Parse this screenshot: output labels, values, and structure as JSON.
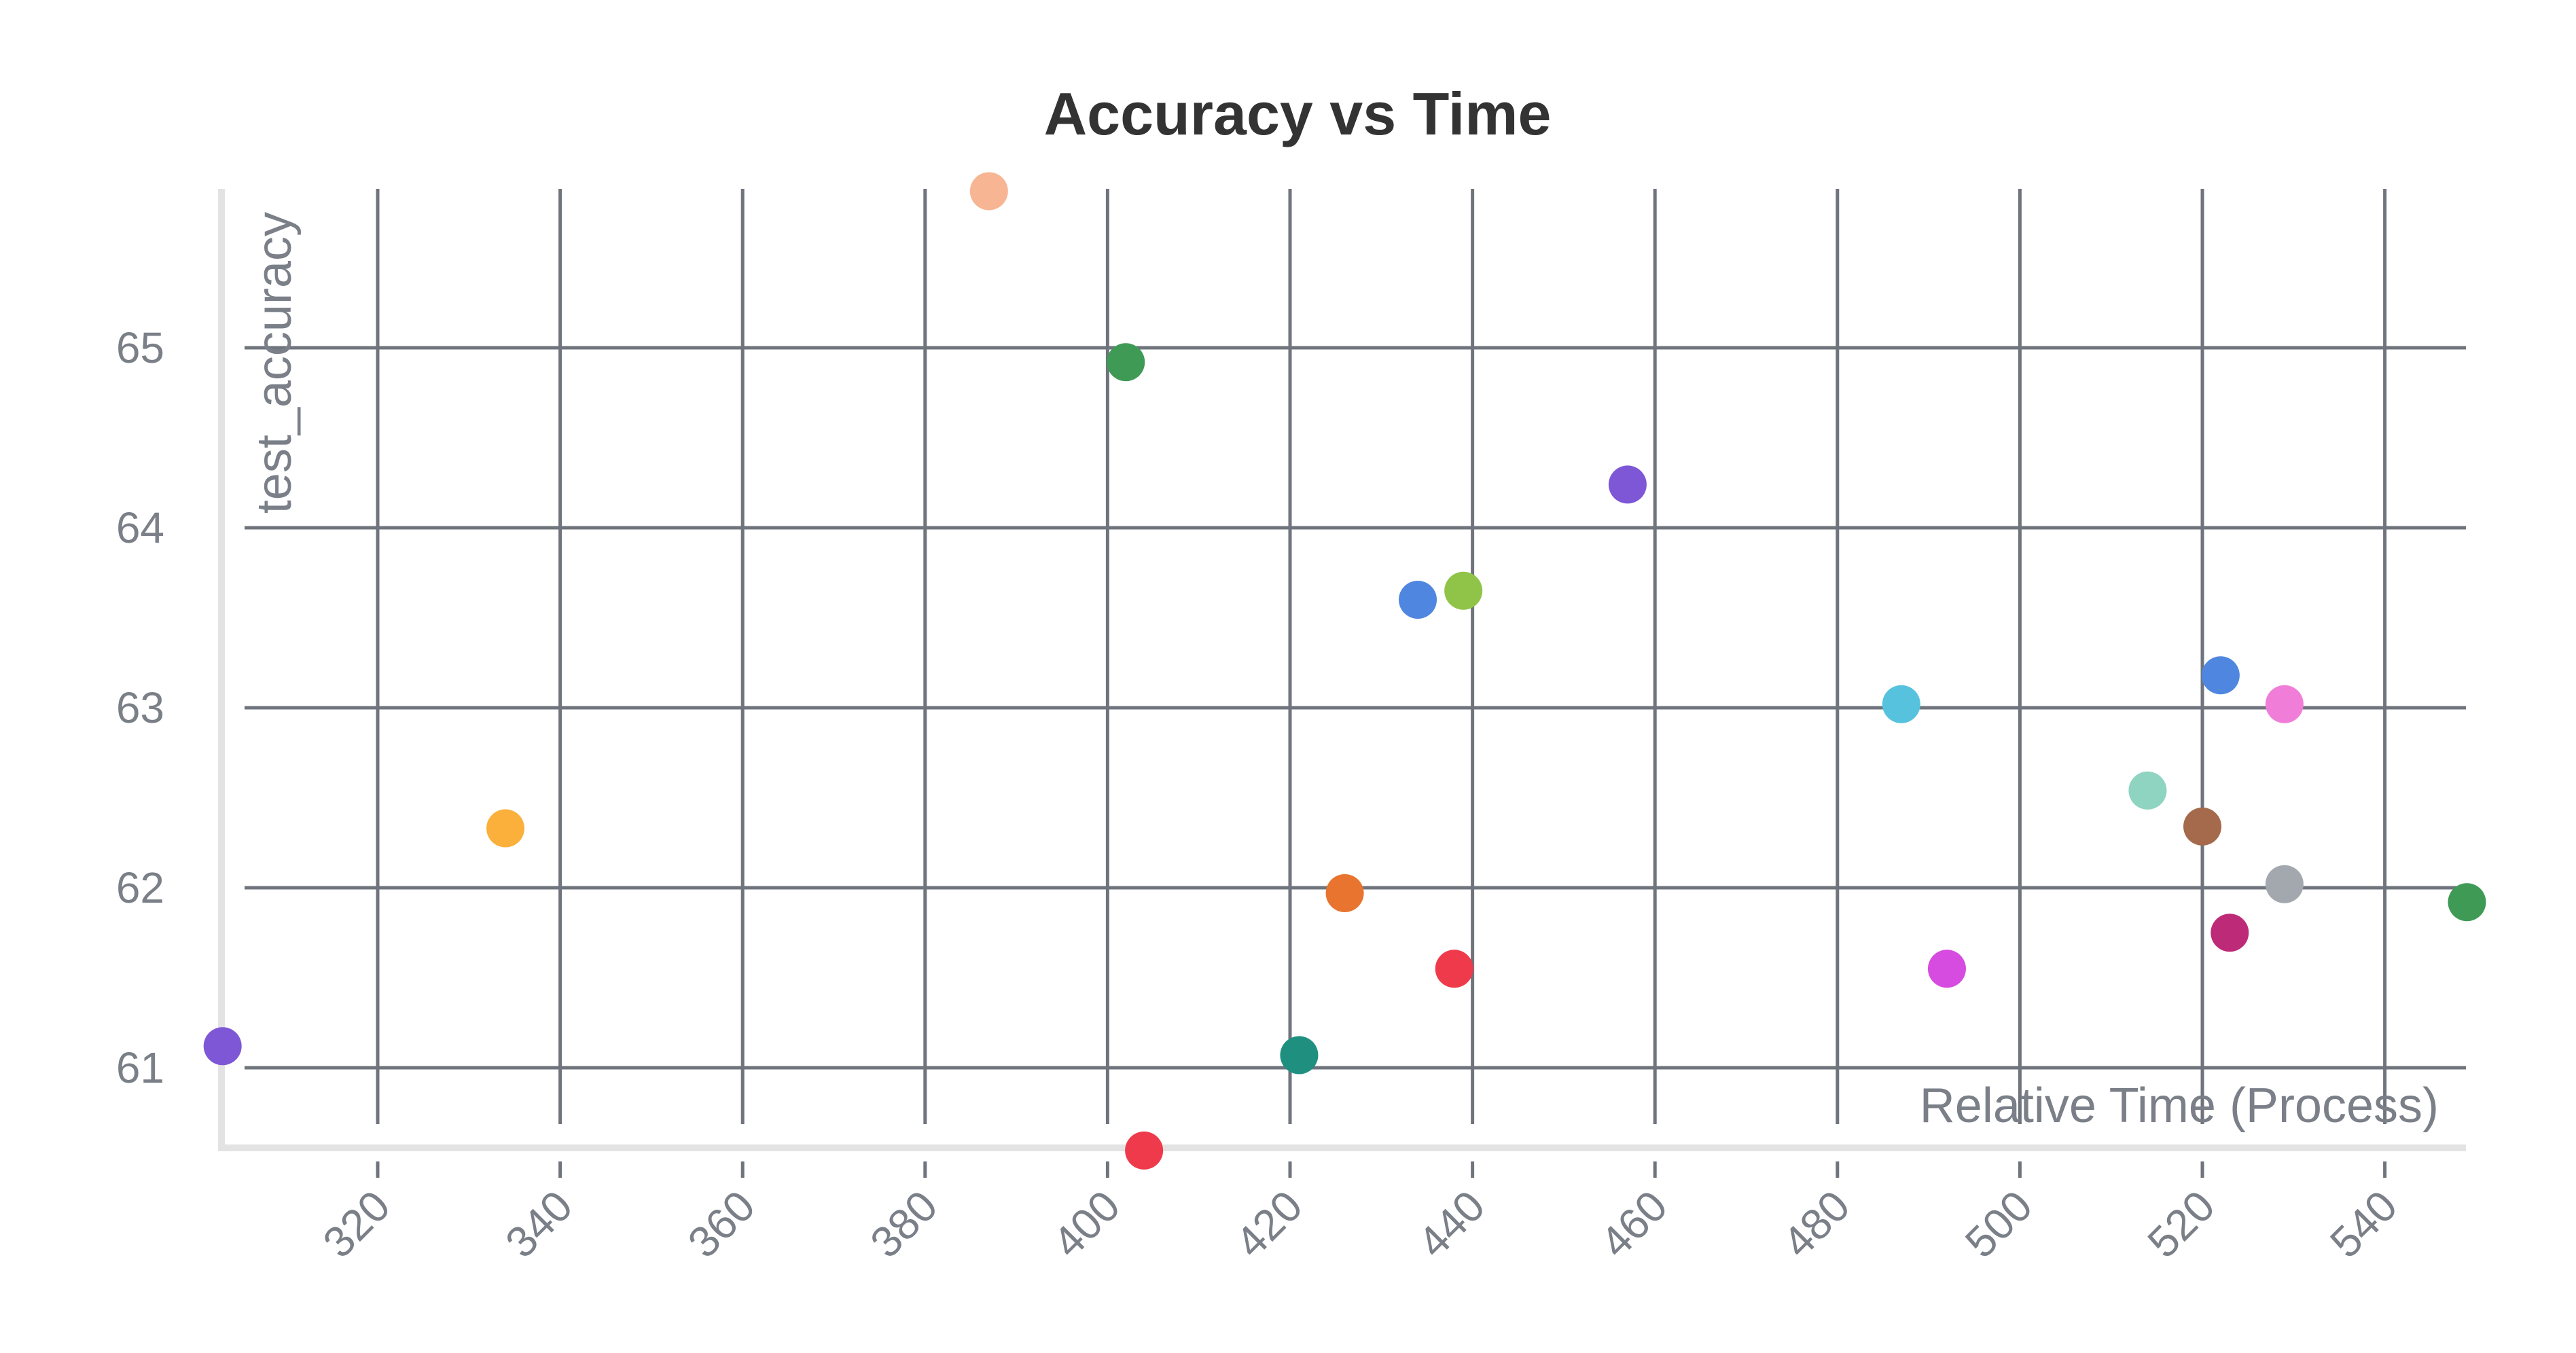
{
  "chart_data": {
    "type": "scatter",
    "title": "Accuracy vs Time",
    "xlabel": "Relative Time (Process)",
    "ylabel": "test_accuracy",
    "xlim": [
      302.8,
      549.5
    ],
    "ylim": [
      60.54,
      65.87
    ],
    "x_ticks": [
      320,
      340,
      360,
      380,
      400,
      420,
      440,
      460,
      480,
      500,
      520,
      540
    ],
    "y_ticks": [
      61,
      62,
      63,
      64,
      65
    ],
    "grid": true,
    "legend": "none",
    "points": [
      {
        "x": 303.0,
        "y": 61.12,
        "color": "#7e57d6"
      },
      {
        "x": 334.0,
        "y": 62.33,
        "color": "#fbb03b"
      },
      {
        "x": 387.0,
        "y": 65.87,
        "color": "#f7b593"
      },
      {
        "x": 402.0,
        "y": 64.92,
        "color": "#3f9a56"
      },
      {
        "x": 404.0,
        "y": 60.54,
        "color": "#ee3a4b"
      },
      {
        "x": 421.0,
        "y": 61.07,
        "color": "#1f8f80"
      },
      {
        "x": 426.0,
        "y": 61.97,
        "color": "#e8742f"
      },
      {
        "x": 434.0,
        "y": 63.6,
        "color": "#4f86e0"
      },
      {
        "x": 438.0,
        "y": 61.55,
        "color": "#ee3a4b"
      },
      {
        "x": 439.0,
        "y": 63.65,
        "color": "#90c449"
      },
      {
        "x": 457.0,
        "y": 64.24,
        "color": "#7e57d6"
      },
      {
        "x": 487.0,
        "y": 63.02,
        "color": "#56c2dd"
      },
      {
        "x": 492.0,
        "y": 61.55,
        "color": "#d64be0"
      },
      {
        "x": 514.0,
        "y": 62.54,
        "color": "#8fd3c1"
      },
      {
        "x": 520.0,
        "y": 62.34,
        "color": "#a46a4b"
      },
      {
        "x": 522.0,
        "y": 63.18,
        "color": "#4f86e0"
      },
      {
        "x": 523.0,
        "y": 61.75,
        "color": "#bd2a77"
      },
      {
        "x": 529.0,
        "y": 63.02,
        "color": "#f07ed8"
      },
      {
        "x": 529.0,
        "y": 62.02,
        "color": "#a2a8ae"
      },
      {
        "x": 549.0,
        "y": 61.92,
        "color": "#3f9a56"
      }
    ]
  }
}
